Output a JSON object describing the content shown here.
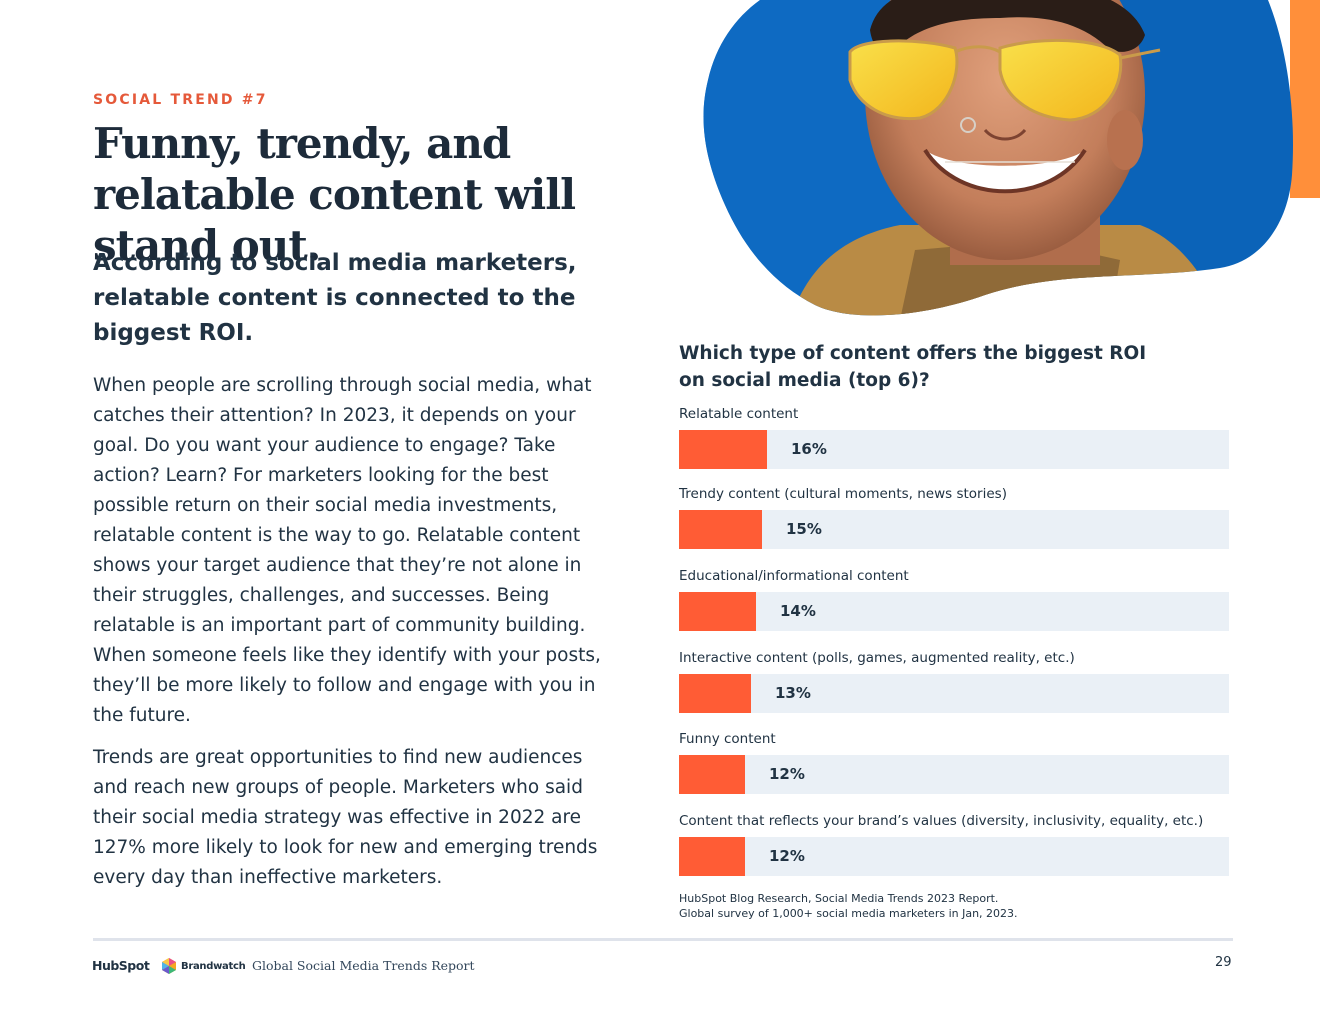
{
  "kicker": "SOCIAL TREND #7",
  "headline": "Funny, trendy, and relatable content will stand out.",
  "subhead": "According to social media marketers, relatable content is connected to the biggest ROI.",
  "paragraphs": [
    "When people are scrolling through social media, what catches their attention? In 2023, it depends on your goal. Do you want your audience to engage? Take action? Learn? For marketers looking for the best possible return on their social media investments, relatable content is the way to go. Relatable content shows your target audience that they’re not alone in their struggles, challenges, and successes. Being relatable is an important part of community building. When someone feels like they identify with your posts, they’ll be more likely to follow and engage with you in the future.",
    "Trends are great opportunities to find new audiences and reach new groups of people. Marketers who said their social media strategy was effective in 2022 are 127% more likely to look for new and emerging trends every day than ineffective marketers."
  ],
  "chart_data": {
    "type": "bar",
    "orientation": "horizontal",
    "title": "Which type of content offers the biggest ROI on social media (top 6)?",
    "categories": [
      "Relatable content",
      "Trendy content (cultural moments, news stories)",
      "Educational/informational content",
      "Interactive content (polls, games, augmented reality, etc.)",
      "Funny content",
      "Content that reflects your brand’s values (diversity, inclusivity, equality, etc.)"
    ],
    "values": [
      16,
      15,
      14,
      13,
      12,
      12
    ],
    "value_labels": [
      "16%",
      "15%",
      "14%",
      "13%",
      "12%",
      "12%"
    ],
    "unit": "%",
    "xlim": [
      0,
      100
    ],
    "bar_color": "#ff5c35",
    "track_color": "#eaf0f6",
    "source": [
      "HubSpot Blog Research, Social Media Trends 2023 Report.",
      "Global survey of 1,000+ social media marketers in Jan, 2023."
    ]
  },
  "footer": {
    "hubspot_logo": "HubSpot",
    "brandwatch_logo": "Brandwatch",
    "report_title": "Global Social Media Trends Report",
    "page_number": "29"
  },
  "colors": {
    "accent": "#ff5c35",
    "kicker": "#e5593a",
    "text": "#213343",
    "orange_strip": "#ff8f3a",
    "photo_background": "#0b63b8"
  },
  "icons": {
    "photo": "smiling-person-yellow-sunglasses-photo",
    "brandwatch_mark": "brandwatch-hexagon-icon"
  }
}
